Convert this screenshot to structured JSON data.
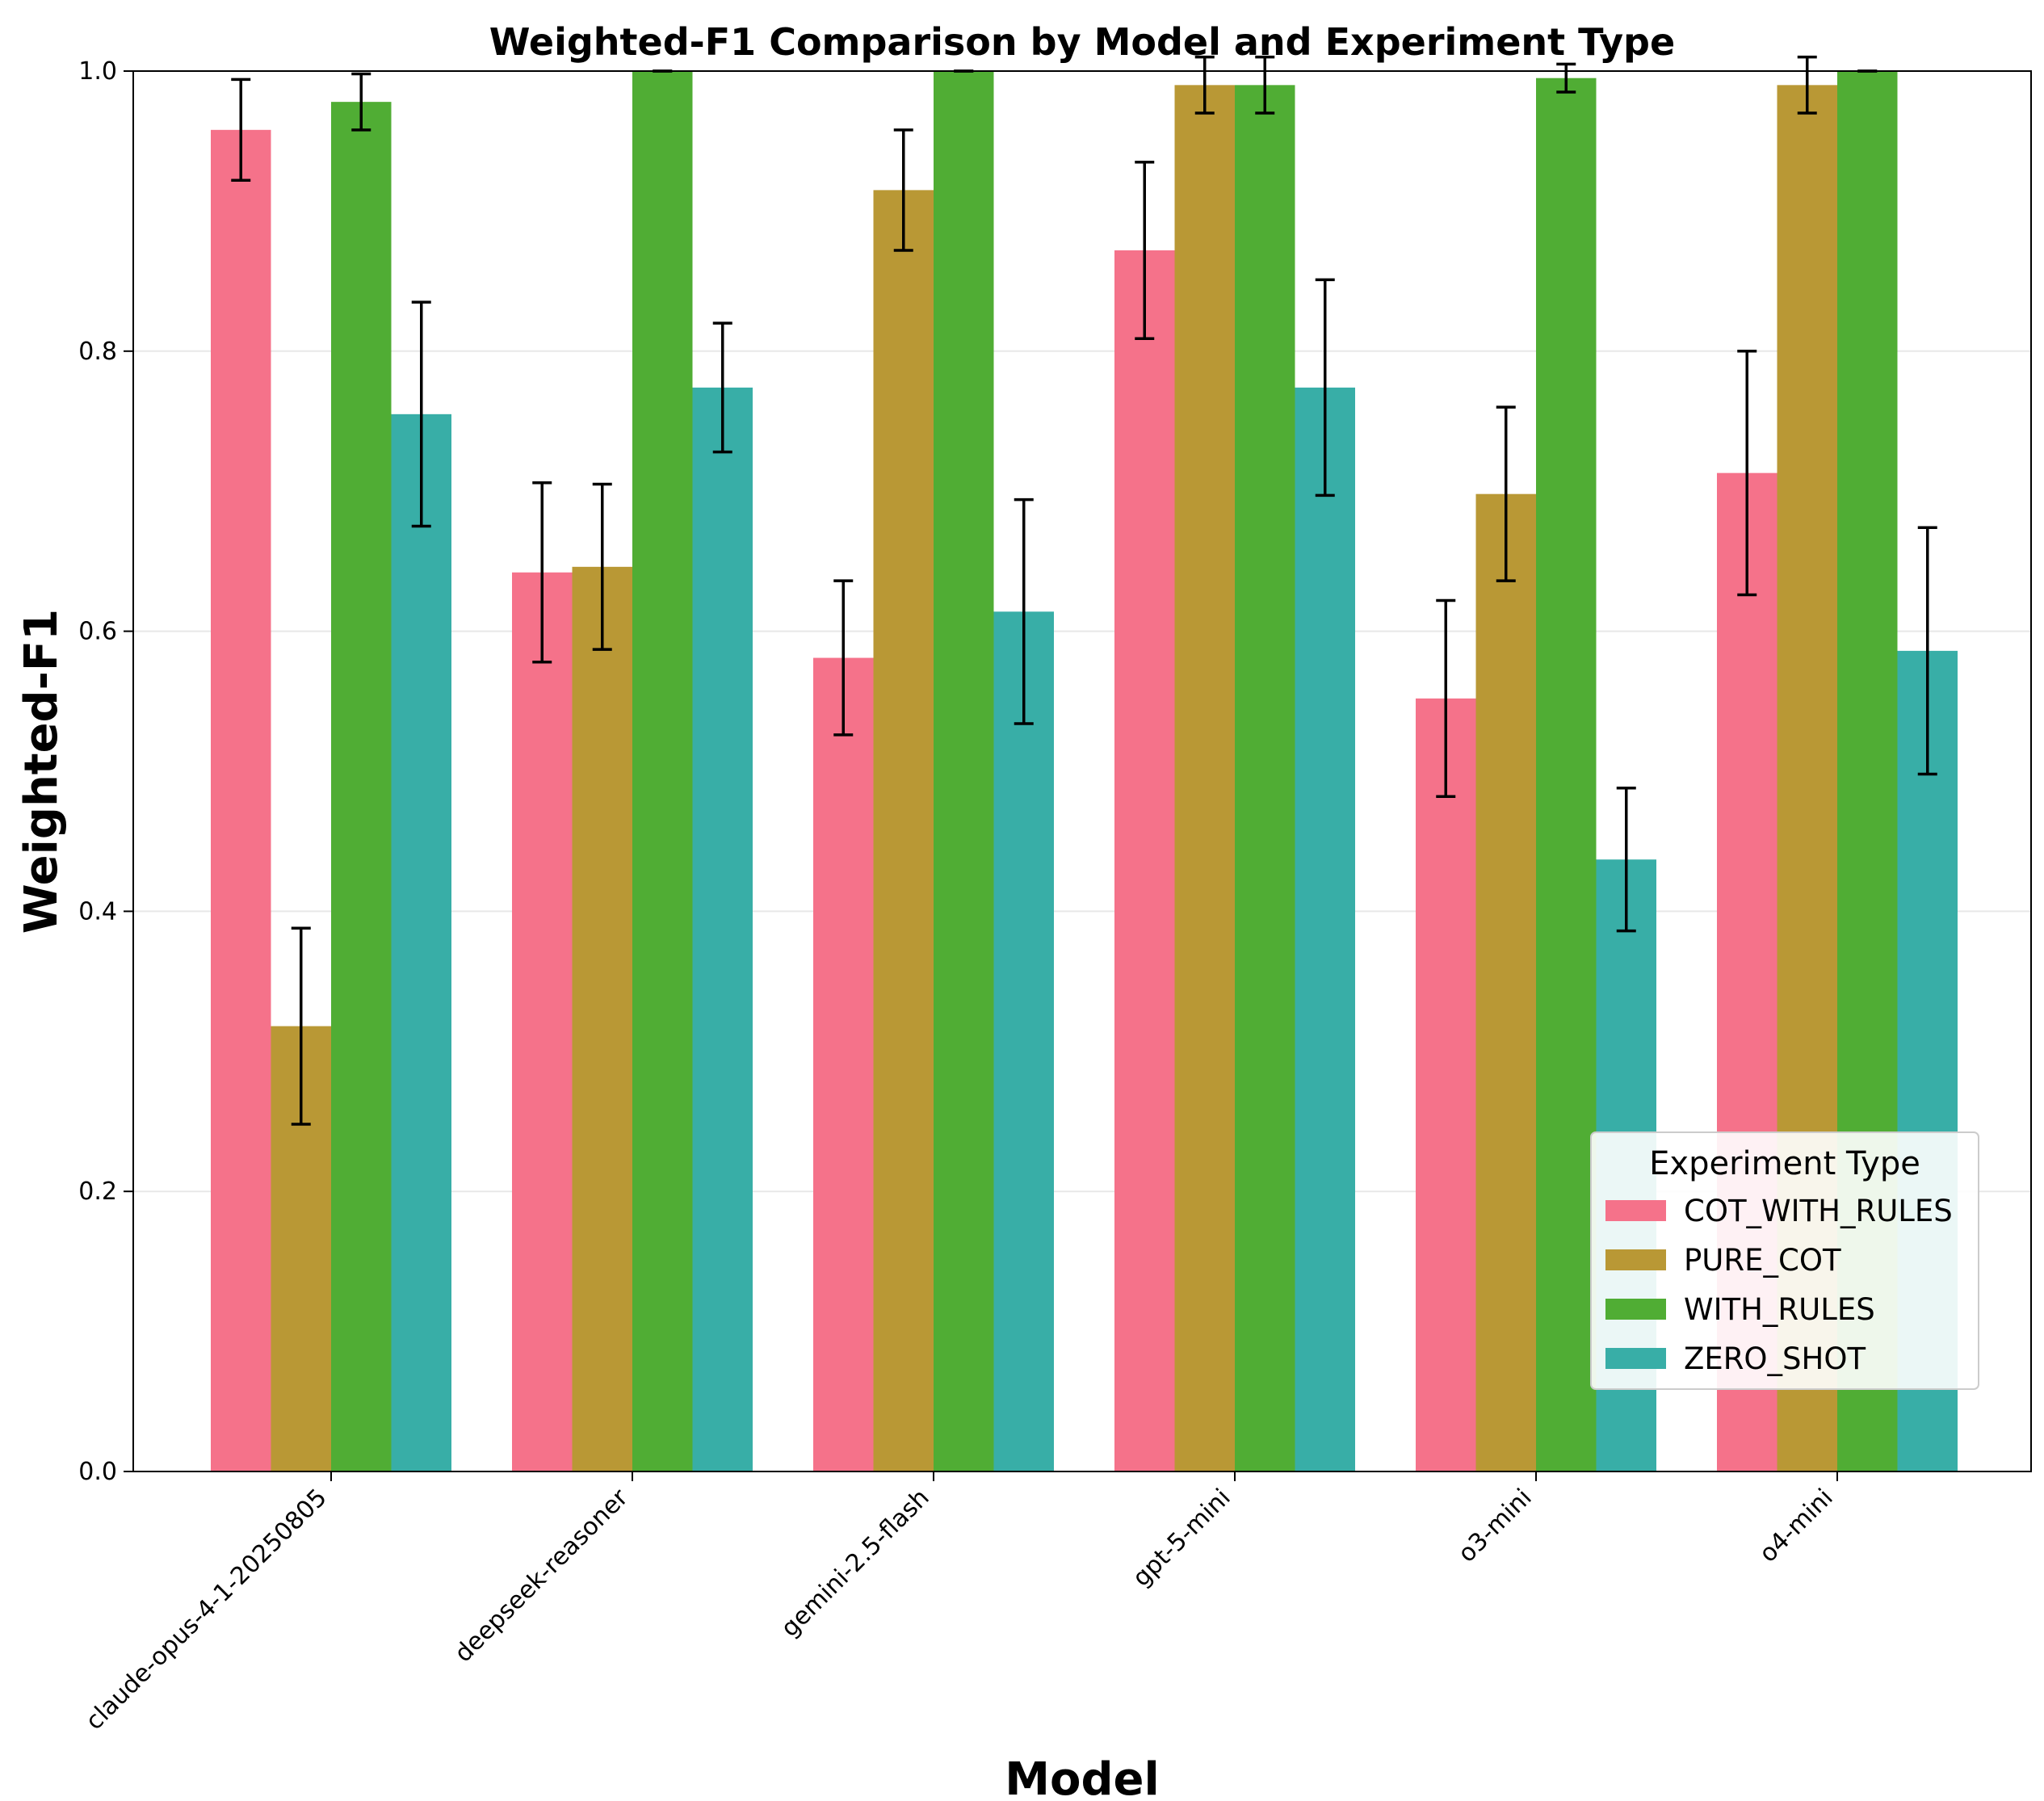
{
  "chart_data": {
    "type": "bar",
    "title": "Weighted-F1 Comparison by Model and Experiment Type",
    "xlabel": "Model",
    "ylabel": "Weighted-F1",
    "ylim": [
      0.0,
      1.0
    ],
    "yticks": [
      0.0,
      0.2,
      0.4,
      0.6,
      0.8,
      1.0
    ],
    "ytick_labels": [
      "0.0",
      "0.2",
      "0.4",
      "0.6",
      "0.8",
      "1.0"
    ],
    "grid": "horizontal, light",
    "categories": [
      "claude-opus-4-1-20250805",
      "deepseek-reasoner",
      "gemini-2.5-flash",
      "gpt-5-mini",
      "o3-mini",
      "o4-mini"
    ],
    "legend": {
      "title": "Experiment Type",
      "placement": "lower-right"
    },
    "series": [
      {
        "name": "COT_WITH_RULES",
        "color": "#f5728a",
        "values": [
          0.958,
          0.642,
          0.581,
          0.872,
          0.552,
          0.713
        ],
        "errors": [
          0.036,
          0.064,
          0.055,
          0.063,
          0.07,
          0.087
        ]
      },
      {
        "name": "PURE_COT",
        "color": "#b99835",
        "values": [
          0.318,
          0.646,
          0.915,
          0.99,
          0.698,
          0.99
        ],
        "errors": [
          0.07,
          0.059,
          0.043,
          0.02,
          0.062,
          0.02
        ]
      },
      {
        "name": "WITH_RULES",
        "color": "#50ad34",
        "values": [
          0.978,
          1.0,
          1.0,
          0.99,
          0.995,
          1.0
        ],
        "errors": [
          0.02,
          0.0,
          0.0,
          0.02,
          0.01,
          0.0
        ]
      },
      {
        "name": "ZERO_SHOT",
        "color": "#38aea7",
        "values": [
          0.755,
          0.774,
          0.614,
          0.774,
          0.437,
          0.586
        ],
        "errors": [
          0.08,
          0.046,
          0.08,
          0.077,
          0.051,
          0.088
        ]
      }
    ]
  }
}
